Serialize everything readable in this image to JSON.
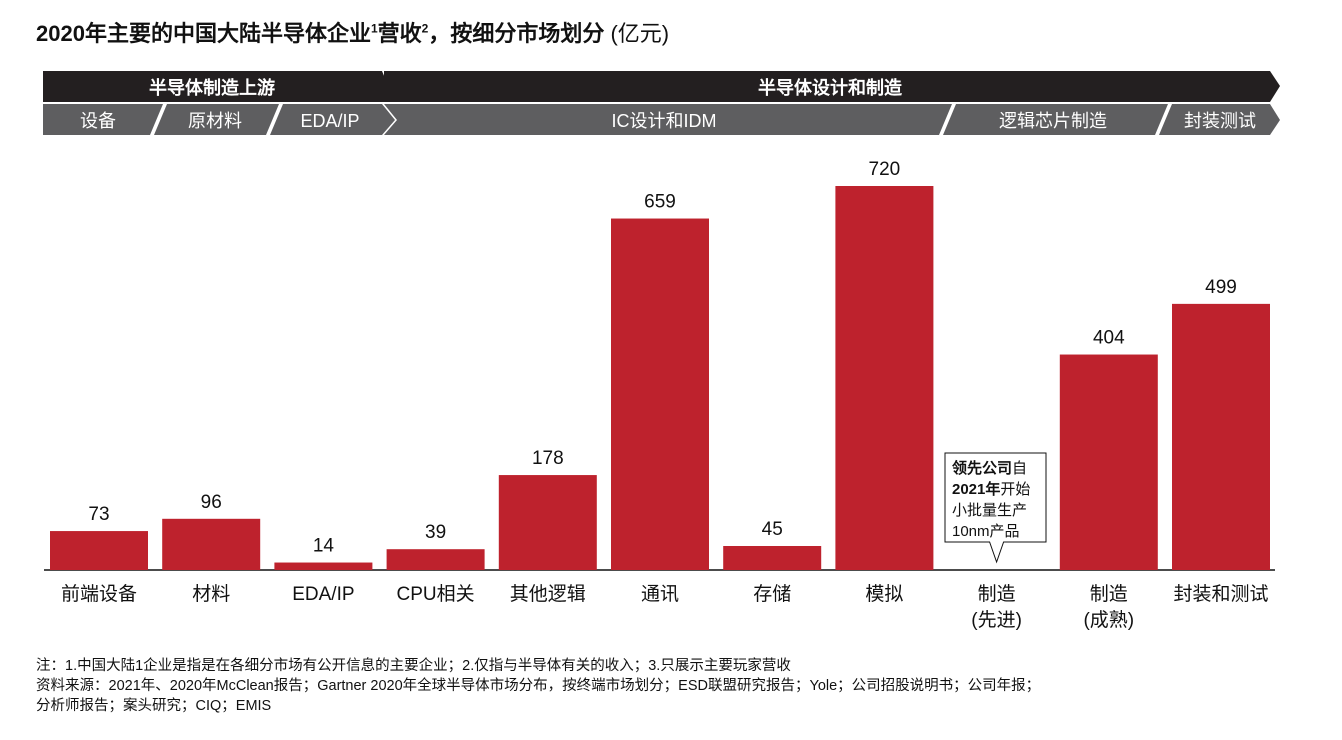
{
  "title": {
    "main": "2020年主要的中国大陆半导体企业",
    "sup1": "1",
    "mid": "营收",
    "sup2": "2",
    "tail": "，按细分市场划分",
    "unit": " (亿元)"
  },
  "header": {
    "groups": [
      "半导体制造上游",
      "半导体设计和制造"
    ],
    "subsegments": [
      "设备",
      "原材料",
      "EDA/IP",
      "IC设计和IDM",
      "逻辑芯片制造",
      "封装测试"
    ]
  },
  "colors": {
    "bar": "#be222d",
    "header_dark": "#231f20",
    "header_sub": "#5e5e60",
    "header_text": "#ffffff"
  },
  "chart_data": {
    "type": "bar",
    "categories": [
      "前端设备",
      "材料",
      "EDA/IP",
      "CPU相关",
      "其他逻辑",
      "通讯",
      "存储",
      "模拟",
      "制造\n(先进)",
      "制造\n(成熟)",
      "封装和测试"
    ],
    "values": [
      73,
      96,
      14,
      39,
      178,
      659,
      45,
      720,
      null,
      404,
      499
    ],
    "value_labels": [
      "73",
      "96",
      "14",
      "39",
      "178",
      "659",
      "45",
      "720",
      "",
      "404",
      "499"
    ],
    "ylim": [
      0,
      720
    ],
    "grid": false,
    "annotation": {
      "category_index": 8,
      "lines": [
        [
          {
            "t": "领先公司",
            "b": true
          },
          {
            "t": "自",
            "b": false
          }
        ],
        [
          {
            "t": "2021年",
            "b": true
          },
          {
            "t": "开始",
            "b": false
          }
        ],
        [
          {
            "t": "小批量生产",
            "b": false
          }
        ],
        [
          {
            "t": "10nm产品",
            "b": false
          }
        ]
      ]
    }
  },
  "notes": [
    "注：1.中国大陆1企业是指是在各细分市场有公开信息的主要企业；2.仅指与半导体有关的收入；3.只展示主要玩家营收",
    "资料来源：2021年、2020年McClean报告；Gartner 2020年全球半导体市场分布，按终端市场划分；ESD联盟研究报告；Yole；公司招股说明书；公司年报；",
    "分析师报告；案头研究；CIQ；EMIS"
  ]
}
